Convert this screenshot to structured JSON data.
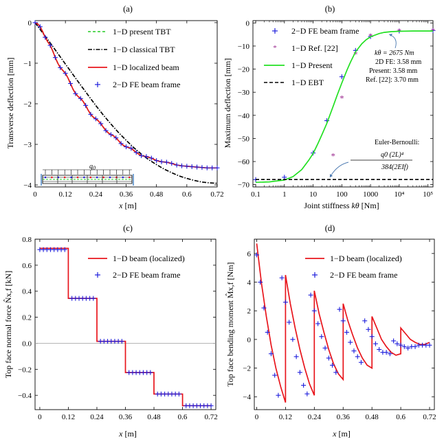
{
  "chart_data": [
    {
      "id": "a",
      "type": "line",
      "title": "(a)",
      "xlabel_italic": "x",
      "xlabel_unit": " [m]",
      "ylabel": "Transverse  deflection  [mm]",
      "xlim": [
        0,
        0.72
      ],
      "ylim": [
        -4.05,
        0.05
      ],
      "xticks": [
        0,
        0.12,
        0.24,
        0.36,
        0.48,
        0.6,
        0.72
      ],
      "xtick_labels": [
        "0",
        "0.12",
        "0.24",
        "0.36",
        "0.48",
        "0.6",
        "0.72"
      ],
      "yticks": [
        0,
        -1,
        -2,
        -3,
        -4
      ],
      "ytick_labels": [
        "0",
        "−1",
        "−2",
        "−3",
        "−4"
      ],
      "inset_label": "q0",
      "series": [
        {
          "name": "1−D present TBT",
          "style": "dashed",
          "color": "#22cc22",
          "x": [
            0,
            0.01,
            0.02,
            0.03,
            0.04,
            0.05,
            0.06,
            0.07,
            0.08,
            0.09,
            0.1,
            0.11,
            0.12,
            0.13,
            0.14,
            0.15,
            0.16,
            0.17,
            0.18,
            0.19,
            0.2,
            0.21,
            0.22,
            0.23,
            0.24,
            0.25,
            0.26,
            0.27,
            0.28,
            0.29,
            0.3,
            0.31,
            0.32,
            0.33,
            0.34,
            0.35,
            0.36,
            0.38,
            0.4,
            0.42,
            0.44,
            0.46,
            0.48,
            0.5,
            0.52,
            0.54,
            0.56,
            0.58,
            0.6,
            0.62,
            0.64,
            0.66,
            0.68,
            0.7,
            0.72
          ],
          "y": [
            0,
            -0.03,
            -0.1,
            -0.22,
            -0.36,
            -0.47,
            -0.56,
            -0.7,
            -0.86,
            -1.0,
            -1.11,
            -1.18,
            -1.25,
            -1.36,
            -1.5,
            -1.64,
            -1.75,
            -1.82,
            -1.87,
            -1.94,
            -2.04,
            -2.16,
            -2.26,
            -2.33,
            -2.37,
            -2.42,
            -2.49,
            -2.58,
            -2.66,
            -2.72,
            -2.76,
            -2.79,
            -2.84,
            -2.91,
            -2.98,
            -3.03,
            -3.06,
            -3.1,
            -3.2,
            -3.28,
            -3.3,
            -3.34,
            -3.4,
            -3.43,
            -3.44,
            -3.47,
            -3.51,
            -3.53,
            -3.54,
            -3.55,
            -3.56,
            -3.57,
            -3.58,
            -3.58,
            -3.58
          ]
        },
        {
          "name": "1−D classical TBT",
          "style": "dashdot",
          "color": "#000000",
          "x": [
            0,
            0.03,
            0.06,
            0.09,
            0.12,
            0.15,
            0.18,
            0.21,
            0.24,
            0.27,
            0.3,
            0.33,
            0.36,
            0.39,
            0.42,
            0.45,
            0.48,
            0.51,
            0.54,
            0.57,
            0.6,
            0.63,
            0.66,
            0.69,
            0.72
          ],
          "y": [
            0,
            -0.25,
            -0.5,
            -0.76,
            -1.02,
            -1.28,
            -1.54,
            -1.79,
            -2.04,
            -2.28,
            -2.5,
            -2.71,
            -2.9,
            -3.08,
            -3.24,
            -3.38,
            -3.5,
            -3.61,
            -3.7,
            -3.78,
            -3.84,
            -3.89,
            -3.93,
            -3.95,
            -3.96
          ]
        },
        {
          "name": "1−D localized beam",
          "style": "solid",
          "color": "#e8141b",
          "x": [
            0,
            0.01,
            0.02,
            0.03,
            0.04,
            0.05,
            0.06,
            0.07,
            0.08,
            0.09,
            0.1,
            0.11,
            0.12,
            0.13,
            0.14,
            0.15,
            0.16,
            0.17,
            0.18,
            0.19,
            0.2,
            0.21,
            0.22,
            0.23,
            0.24,
            0.25,
            0.26,
            0.27,
            0.28,
            0.29,
            0.3,
            0.31,
            0.32,
            0.33,
            0.34,
            0.35,
            0.36,
            0.38,
            0.4,
            0.42,
            0.44,
            0.46,
            0.48,
            0.5,
            0.52,
            0.54,
            0.56,
            0.58,
            0.6,
            0.62,
            0.64,
            0.66,
            0.68,
            0.7,
            0.72
          ],
          "y": [
            0,
            -0.03,
            -0.1,
            -0.22,
            -0.36,
            -0.47,
            -0.56,
            -0.7,
            -0.86,
            -1.0,
            -1.11,
            -1.18,
            -1.25,
            -1.36,
            -1.5,
            -1.64,
            -1.75,
            -1.82,
            -1.87,
            -1.94,
            -2.04,
            -2.16,
            -2.26,
            -2.33,
            -2.37,
            -2.42,
            -2.49,
            -2.58,
            -2.66,
            -2.72,
            -2.76,
            -2.79,
            -2.84,
            -2.91,
            -2.98,
            -3.03,
            -3.06,
            -3.1,
            -3.2,
            -3.28,
            -3.3,
            -3.34,
            -3.4,
            -3.43,
            -3.44,
            -3.47,
            -3.51,
            -3.53,
            -3.54,
            -3.55,
            -3.56,
            -3.57,
            -3.58,
            -3.58,
            -3.58
          ]
        },
        {
          "name": "2−D FE beam frame",
          "style": "plus",
          "color": "#1c1cdc",
          "x": [
            0,
            0.02,
            0.04,
            0.06,
            0.08,
            0.1,
            0.12,
            0.14,
            0.16,
            0.18,
            0.2,
            0.22,
            0.24,
            0.26,
            0.28,
            0.3,
            0.32,
            0.34,
            0.36,
            0.38,
            0.4,
            0.42,
            0.44,
            0.46,
            0.48,
            0.5,
            0.52,
            0.54,
            0.56,
            0.58,
            0.6,
            0.62,
            0.64,
            0.66,
            0.68,
            0.7,
            0.72
          ],
          "y": [
            0,
            -0.1,
            -0.36,
            -0.56,
            -0.86,
            -1.11,
            -1.25,
            -1.5,
            -1.75,
            -1.87,
            -2.04,
            -2.26,
            -2.37,
            -2.49,
            -2.66,
            -2.76,
            -2.84,
            -2.98,
            -3.06,
            -3.1,
            -3.2,
            -3.28,
            -3.3,
            -3.34,
            -3.4,
            -3.43,
            -3.44,
            -3.47,
            -3.51,
            -3.53,
            -3.54,
            -3.55,
            -3.56,
            -3.57,
            -3.58,
            -3.58,
            -3.58
          ]
        }
      ]
    },
    {
      "id": "b",
      "type": "line",
      "title": "(b)",
      "xlabel": "Joint stiffness ",
      "xlabel_italic": "kθ",
      "xlabel_unit": " [Nm]",
      "ylabel": "Maximum  deflection  [mm]",
      "xscale": "log",
      "xlim": [
        0.08,
        150000
      ],
      "ylim": [
        -71,
        1
      ],
      "xticks": [
        0.1,
        1,
        10,
        100,
        1000,
        10000,
        100000
      ],
      "xtick_labels": [
        "0.1",
        "1",
        "10",
        "100",
        "1000",
        "10⁴",
        "10⁵"
      ],
      "yticks": [
        0,
        -10,
        -20,
        -30,
        -40,
        -50,
        -60,
        -70
      ],
      "ytick_labels": [
        "0",
        "−10",
        "−20",
        "−30",
        "−40",
        "−50",
        "−60",
        "−70"
      ],
      "series": [
        {
          "name": "2−D FE beam frame",
          "style": "plus",
          "color": "#1c1cdc",
          "x": [
            0.1,
            1,
            10,
            30,
            100,
            300,
            1000,
            10000,
            150000
          ],
          "y": [
            -67.8,
            -66.8,
            -56.3,
            -42.3,
            -23.3,
            -11.9,
            -5.9,
            -3.5,
            -3.3
          ]
        },
        {
          "name": "1−D Ref. [22]",
          "style": "star",
          "color": "#9b2a8f",
          "x": [
            50,
            100,
            300,
            1000,
            10000,
            150000
          ],
          "y": [
            -57.5,
            -32.5,
            -13.5,
            -5.5,
            -3.4,
            -3.3
          ]
        },
        {
          "name": "1−D Present",
          "style": "solid",
          "color": "#22e022",
          "x": [
            0.1,
            0.3,
            1,
            2,
            4,
            7,
            10,
            15,
            20,
            30,
            50,
            70,
            100,
            150,
            200,
            300,
            500,
            700,
            1000,
            2000,
            3000,
            5000,
            10000,
            30000,
            100000,
            150000
          ],
          "y": [
            -69,
            -68.8,
            -68,
            -66.5,
            -63.5,
            -59.5,
            -56.5,
            -52,
            -48.5,
            -43.5,
            -36,
            -31,
            -26,
            -20.5,
            -17,
            -12.5,
            -9,
            -7.3,
            -6,
            -4.6,
            -4.1,
            -3.8,
            -3.6,
            -3.5,
            -3.48,
            -3.48
          ]
        },
        {
          "name": "1−D EBT",
          "style": "dashed",
          "color": "#000000",
          "x": [
            0.1,
            150000
          ],
          "y": [
            -67.8,
            -67.8
          ]
        }
      ],
      "annotation_top": [
        "kθ = 2675 Nm",
        "2D FE: 3.58 mm",
        "Present: 3.58 mm",
        "Ref. [22]: 3.70 mm"
      ],
      "annotation_bottom_title": "Euler-Bernoulli:",
      "annotation_bottom_num": "q0 (2L)⁴",
      "annotation_bottom_den": "384(2EIf)"
    },
    {
      "id": "c",
      "type": "step",
      "title": "(c)",
      "xlabel_italic": "x",
      "xlabel_unit": " [m]",
      "ylabel": "Top face normal force  N̂x,f  [kN]",
      "xlim": [
        -0.02,
        0.74
      ],
      "ylim": [
        -0.51,
        0.8
      ],
      "xticks": [
        0,
        0.12,
        0.24,
        0.36,
        0.48,
        0.6,
        0.72
      ],
      "xtick_labels": [
        "0",
        "0.12",
        "0.24",
        "0.36",
        "0.48",
        "0.6",
        "0.72"
      ],
      "yticks": [
        0.8,
        0.6,
        0.4,
        0.2,
        0.0,
        -0.2,
        -0.4
      ],
      "ytick_labels": [
        "0.8",
        "0.6",
        "0.4",
        "0.2",
        "0.0",
        "−0.2",
        "−0.4"
      ],
      "series": [
        {
          "name": "1−D beam (localized)",
          "style": "solid",
          "color": "#e8141b",
          "x": [
            0,
            0.12,
            0.12,
            0.24,
            0.24,
            0.36,
            0.36,
            0.48,
            0.48,
            0.6,
            0.6,
            0.72
          ],
          "y": [
            0.73,
            0.73,
            0.345,
            0.345,
            0.015,
            0.015,
            -0.225,
            -0.225,
            -0.39,
            -0.39,
            -0.48,
            -0.48
          ]
        },
        {
          "name": "2−D FE beam frame",
          "style": "plus",
          "color": "#1c1cdc",
          "x": [
            0,
            0.015,
            0.03,
            0.045,
            0.06,
            0.075,
            0.09,
            0.105,
            0.135,
            0.15,
            0.165,
            0.18,
            0.195,
            0.21,
            0.225,
            0.255,
            0.27,
            0.285,
            0.3,
            0.315,
            0.33,
            0.345,
            0.375,
            0.39,
            0.405,
            0.42,
            0.435,
            0.45,
            0.465,
            0.495,
            0.51,
            0.525,
            0.54,
            0.555,
            0.57,
            0.585,
            0.615,
            0.63,
            0.645,
            0.66,
            0.675,
            0.69,
            0.705,
            0.72
          ],
          "y": [
            0.72,
            0.72,
            0.72,
            0.72,
            0.72,
            0.72,
            0.72,
            0.72,
            0.345,
            0.345,
            0.345,
            0.345,
            0.345,
            0.345,
            0.345,
            0.015,
            0.015,
            0.015,
            0.015,
            0.015,
            0.015,
            0.015,
            -0.225,
            -0.225,
            -0.225,
            -0.225,
            -0.225,
            -0.225,
            -0.225,
            -0.39,
            -0.39,
            -0.39,
            -0.39,
            -0.39,
            -0.39,
            -0.39,
            -0.48,
            -0.48,
            -0.48,
            -0.48,
            -0.48,
            -0.48,
            -0.48,
            -0.48
          ]
        }
      ]
    },
    {
      "id": "d",
      "type": "line",
      "title": "(d)",
      "xlabel_italic": "x",
      "xlabel_unit": " [m]",
      "ylabel": "Top face bending moment  M̂x,f  [Nm]",
      "xlim": [
        -0.01,
        0.74
      ],
      "ylim": [
        -4.9,
        7
      ],
      "xticks": [
        0,
        0.12,
        0.24,
        0.36,
        0.48,
        0.6,
        0.72
      ],
      "xtick_labels": [
        "0",
        "0.12",
        "0.24",
        "0.36",
        "0.48",
        "0.6",
        "0.72"
      ],
      "yticks": [
        6,
        4,
        2,
        0,
        -2,
        -4
      ],
      "ytick_labels": [
        "6",
        "4",
        "2",
        "0",
        "−2",
        "−4"
      ],
      "series": [
        {
          "name": "1−D beam (localized)",
          "style": "solid",
          "color": "#e8141b",
          "x": [
            0,
            0.02,
            0.04,
            0.06,
            0.08,
            0.1,
            0.12,
            0.12,
            0.14,
            0.16,
            0.18,
            0.2,
            0.22,
            0.24,
            0.24,
            0.26,
            0.28,
            0.3,
            0.32,
            0.34,
            0.36,
            0.36,
            0.38,
            0.4,
            0.42,
            0.44,
            0.46,
            0.48,
            0.48,
            0.5,
            0.52,
            0.54,
            0.56,
            0.58,
            0.6,
            0.6,
            0.62,
            0.64,
            0.66,
            0.68,
            0.7,
            0.72
          ],
          "y": [
            6.7,
            3.9,
            1.6,
            -0.4,
            -2.0,
            -3.3,
            -4.4,
            4.5,
            2.5,
            0.8,
            -0.7,
            -2.0,
            -3.1,
            -3.9,
            3.4,
            1.8,
            0.5,
            -0.7,
            -1.7,
            -2.4,
            -2.8,
            2.5,
            1.3,
            0.3,
            -0.6,
            -1.3,
            -1.8,
            -2.0,
            1.6,
            0.8,
            0.0,
            -0.5,
            -0.9,
            -1.1,
            -1.0,
            0.8,
            0.4,
            0.0,
            -0.2,
            -0.35,
            -0.35,
            -0.2
          ]
        },
        {
          "name": "2−D FE beam frame",
          "style": "plus",
          "color": "#1c1cdc",
          "x": [
            0,
            0.015,
            0.03,
            0.045,
            0.06,
            0.075,
            0.09,
            0.105,
            0.12,
            0.135,
            0.15,
            0.165,
            0.18,
            0.195,
            0.21,
            0.225,
            0.24,
            0.255,
            0.27,
            0.285,
            0.3,
            0.315,
            0.33,
            0.345,
            0.36,
            0.375,
            0.39,
            0.405,
            0.42,
            0.435,
            0.45,
            0.465,
            0.48,
            0.495,
            0.51,
            0.525,
            0.54,
            0.555,
            0.57,
            0.585,
            0.6,
            0.615,
            0.63,
            0.645,
            0.66,
            0.675,
            0.69,
            0.705,
            0.72
          ],
          "y": [
            5.9,
            4.0,
            2.2,
            0.5,
            -1.0,
            -2.5,
            -3.9,
            4.3,
            2.6,
            1.2,
            0.0,
            -1.2,
            -2.3,
            -3.2,
            -3.8,
            3.1,
            2.0,
            1.1,
            0.2,
            -0.6,
            -1.3,
            -1.8,
            -2.3,
            2.1,
            1.3,
            0.5,
            -0.2,
            -0.8,
            -1.2,
            -1.6,
            1.3,
            0.7,
            0.2,
            -0.3,
            -0.7,
            -0.9,
            -0.9,
            -1.0,
            -0.1,
            -0.3,
            -0.4,
            -0.5,
            -0.6,
            -0.5,
            -0.5,
            -0.4,
            -0.4,
            -0.4,
            -0.4
          ]
        }
      ]
    }
  ]
}
